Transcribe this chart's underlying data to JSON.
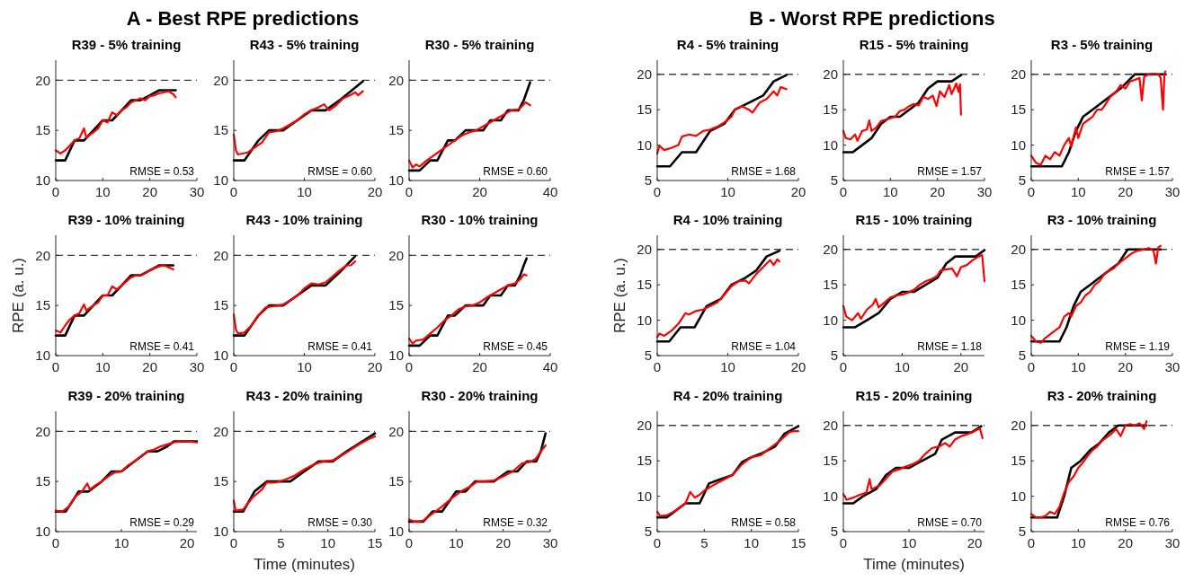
{
  "chart_data": [
    {
      "type": "line",
      "title": "R39 - 5% training",
      "annotations": [
        "A - Best RPE predictions",
        "RMSE = 0.53"
      ],
      "xlim": [
        0,
        30
      ],
      "xticks": [
        0,
        10,
        20,
        30
      ],
      "ylim": [
        10,
        22
      ],
      "yticks": [
        10,
        15,
        20
      ],
      "ref_lines": [
        {
          "axis": "y",
          "value": 20,
          "color": "#404040",
          "line_style": "dashed"
        }
      ],
      "series": [
        {
          "color": "#000000",
          "x": [
            0,
            2,
            4,
            6,
            8,
            10,
            12,
            14,
            16,
            18,
            20,
            22,
            25.5
          ],
          "values": [
            12,
            12,
            14,
            14,
            15,
            16,
            16,
            17,
            18,
            18,
            18.5,
            19,
            19
          ]
        },
        {
          "color": "#ff0000",
          "x": [
            0,
            1,
            2,
            3,
            4,
            5,
            6,
            6.5,
            8,
            9,
            10,
            11,
            12,
            13,
            14,
            15,
            16,
            17,
            18,
            19,
            20,
            21,
            22,
            23,
            24,
            25,
            25.5
          ],
          "values": [
            13,
            12.7,
            13,
            13.5,
            14,
            14.2,
            15.2,
            14.3,
            14.8,
            15.2,
            16,
            15.8,
            16.8,
            16.5,
            17,
            17.3,
            17.8,
            18,
            18.2,
            18,
            18.4,
            18.5,
            18.7,
            18.8,
            18.9,
            18.6,
            18.3
          ]
        }
      ]
    },
    {
      "type": "line",
      "title": "R43 - 5% training",
      "annotations": [
        "RMSE = 0.60"
      ],
      "xlim": [
        0,
        20
      ],
      "xticks": [
        0,
        10,
        20
      ],
      "ylim": [
        10,
        22
      ],
      "yticks": [
        10,
        15,
        20
      ],
      "ref_lines": [
        {
          "axis": "y",
          "value": 20,
          "color": "#404040",
          "line_style": "dashed"
        }
      ],
      "series": [
        {
          "color": "#000000",
          "x": [
            0,
            1.5,
            3.5,
            5,
            7,
            9,
            11,
            13,
            15,
            18.3
          ],
          "values": [
            12,
            12,
            14,
            15,
            15,
            16,
            17,
            17,
            18,
            19.9
          ]
        },
        {
          "color": "#ff0000",
          "x": [
            0,
            0.3,
            0.6,
            2,
            3,
            4,
            5,
            6,
            7,
            8,
            9,
            10,
            11,
            12,
            12.8,
            13.5,
            14.5,
            15.5,
            16.5,
            17.2,
            17.6,
            18.3
          ],
          "values": [
            14.6,
            13,
            12.6,
            12.8,
            13.3,
            13.8,
            14.8,
            14.9,
            15.2,
            15.6,
            16,
            16.6,
            17,
            17.3,
            17.6,
            17,
            17.5,
            18.2,
            18.5,
            18.8,
            18.5,
            18.9
          ]
        }
      ]
    },
    {
      "type": "line",
      "title": "R30 - 5% training",
      "annotations": [
        "RMSE = 0.60"
      ],
      "xlim": [
        0,
        40
      ],
      "xticks": [
        0,
        20,
        40
      ],
      "ylim": [
        10,
        22
      ],
      "yticks": [
        10,
        15,
        20
      ],
      "ref_lines": [
        {
          "axis": "y",
          "value": 20,
          "color": "#404040",
          "line_style": "dashed"
        }
      ],
      "series": [
        {
          "color": "#000000",
          "x": [
            0,
            3,
            6,
            8,
            11,
            13,
            16,
            19,
            21,
            23,
            26,
            28,
            31,
            32.5,
            33.5,
            34.3
          ],
          "values": [
            11,
            11,
            12,
            12,
            14,
            14,
            15,
            15,
            15,
            16,
            16,
            17,
            17,
            18,
            19,
            19.8
          ]
        },
        {
          "color": "#ff0000",
          "x": [
            0,
            1,
            2,
            3,
            5,
            7,
            9,
            11,
            13,
            15,
            17,
            19,
            21,
            23,
            25,
            27,
            29,
            31,
            32,
            33,
            34.3
          ],
          "values": [
            12,
            11.3,
            11.6,
            11.4,
            12,
            12.5,
            13,
            13.5,
            14,
            14.5,
            14.8,
            15,
            15.4,
            15.8,
            16.2,
            16.6,
            17,
            17.1,
            17.4,
            17.8,
            17.5
          ]
        }
      ]
    },
    {
      "type": "line",
      "title": "R39 - 10% training",
      "ylabel": "RPE (a. u.)",
      "annotations": [
        "RMSE = 0.41"
      ],
      "xlim": [
        0,
        30
      ],
      "xticks": [
        0,
        10,
        20,
        30
      ],
      "ylim": [
        10,
        22
      ],
      "yticks": [
        10,
        15,
        20
      ],
      "ref_lines": [
        {
          "axis": "y",
          "value": 20,
          "color": "#404040",
          "line_style": "dashed"
        }
      ],
      "series": [
        {
          "color": "#000000",
          "x": [
            0,
            2,
            4,
            6,
            8,
            10,
            12,
            14,
            16,
            18,
            20,
            22,
            25
          ],
          "values": [
            12,
            12,
            14,
            14,
            15,
            16,
            16,
            17,
            18,
            18,
            18.5,
            19,
            19
          ]
        },
        {
          "color": "#ff0000",
          "x": [
            0,
            1,
            2,
            3,
            4,
            5,
            6,
            6.5,
            8,
            9,
            10,
            11,
            12,
            13,
            14,
            15,
            16,
            17,
            18,
            19,
            20,
            21,
            22,
            23,
            24,
            25
          ],
          "values": [
            12.5,
            12.3,
            13,
            13.6,
            14,
            14.2,
            15.1,
            14.5,
            15,
            15.3,
            16,
            16,
            16.9,
            16.6,
            17,
            17.4,
            17.8,
            18,
            18,
            18.2,
            18.5,
            18.7,
            18.9,
            19,
            18.8,
            18.6
          ]
        }
      ]
    },
    {
      "type": "line",
      "title": "R43 - 10% training",
      "annotations": [
        "RMSE = 0.41"
      ],
      "xlim": [
        0,
        20
      ],
      "xticks": [
        0,
        10,
        20
      ],
      "ylim": [
        10,
        22
      ],
      "yticks": [
        10,
        15,
        20
      ],
      "ref_lines": [
        {
          "axis": "y",
          "value": 20,
          "color": "#404040",
          "line_style": "dashed"
        }
      ],
      "series": [
        {
          "color": "#000000",
          "x": [
            0,
            1.5,
            3.5,
            5,
            7,
            9,
            11,
            13,
            15,
            17.2
          ],
          "values": [
            12,
            12,
            14,
            15,
            15,
            16,
            17,
            17,
            18.3,
            19.9
          ]
        },
        {
          "color": "#ff0000",
          "x": [
            0,
            0.3,
            0.6,
            1.5,
            2.5,
            3.5,
            4.5,
            5.5,
            7,
            8,
            9,
            10,
            11,
            12,
            13,
            14,
            15,
            16,
            16.6,
            17.2
          ],
          "values": [
            14.1,
            12.6,
            12.2,
            12.3,
            13,
            14,
            14.8,
            14.9,
            15.1,
            15.5,
            16,
            16.7,
            17.2,
            17.1,
            17.3,
            17.9,
            18.5,
            19,
            19,
            19.4
          ]
        }
      ]
    },
    {
      "type": "line",
      "title": "R30 - 10% training",
      "annotations": [
        "RMSE = 0.45"
      ],
      "xlim": [
        0,
        40
      ],
      "xticks": [
        0,
        20,
        40
      ],
      "ylim": [
        10,
        22
      ],
      "yticks": [
        10,
        15,
        20
      ],
      "ref_lines": [
        {
          "axis": "y",
          "value": 20,
          "color": "#404040",
          "line_style": "dashed"
        }
      ],
      "series": [
        {
          "color": "#000000",
          "x": [
            0,
            3,
            6,
            8,
            11,
            13,
            16,
            19,
            21,
            23,
            26,
            28,
            30,
            31.5,
            32.5,
            33.3
          ],
          "values": [
            11,
            11,
            12,
            12,
            14,
            14,
            15,
            15,
            15,
            16,
            16,
            17,
            17,
            18,
            19,
            19.7
          ]
        },
        {
          "color": "#ff0000",
          "x": [
            0,
            1,
            2,
            4,
            6,
            8,
            10,
            12,
            14,
            16,
            18,
            20,
            22,
            24,
            26,
            28,
            30,
            31.5,
            32.5,
            33.3
          ],
          "values": [
            11.7,
            11.2,
            11.5,
            11.6,
            12.2,
            12.8,
            13.5,
            14,
            14.6,
            14.9,
            15,
            15.3,
            15.8,
            16.2,
            16.6,
            17,
            17.2,
            17.6,
            18.1,
            18
          ]
        }
      ]
    },
    {
      "type": "line",
      "title": "R39 - 20% training",
      "annotations": [
        "RMSE = 0.29"
      ],
      "xlim": [
        0,
        21.5
      ],
      "xticks": [
        0,
        10,
        20
      ],
      "ylim": [
        10,
        22
      ],
      "yticks": [
        10,
        15,
        20
      ],
      "ref_lines": [
        {
          "axis": "y",
          "value": 20,
          "color": "#404040",
          "line_style": "dashed"
        }
      ],
      "series": [
        {
          "color": "#000000",
          "x": [
            0,
            1.5,
            3,
            3.5,
            5,
            7,
            8.5,
            10,
            12,
            14,
            15.5,
            17,
            18,
            21.5
          ],
          "values": [
            12,
            12,
            13.5,
            14,
            14,
            15,
            16,
            16,
            17,
            18,
            18,
            18.5,
            19,
            19
          ]
        },
        {
          "color": "#ff0000",
          "x": [
            0,
            1,
            2,
            3,
            4,
            4.8,
            5.2,
            6,
            7,
            8,
            9,
            10,
            11,
            12,
            13,
            14,
            15,
            16,
            17,
            18,
            19,
            20,
            21.5
          ],
          "values": [
            12.1,
            12,
            12.5,
            13.5,
            14,
            14.8,
            14.2,
            14.6,
            15,
            15.5,
            15.9,
            16,
            16.6,
            17,
            17.5,
            18,
            18.2,
            18.5,
            18.7,
            18.9,
            19,
            19,
            18.9
          ]
        }
      ]
    },
    {
      "type": "line",
      "title": "R43 - 20% training",
      "xlabel": "Time (minutes)",
      "annotations": [
        "RMSE = 0.30"
      ],
      "xlim": [
        0,
        15
      ],
      "xticks": [
        0,
        5,
        10,
        15
      ],
      "ylim": [
        10,
        22
      ],
      "yticks": [
        10,
        15,
        20
      ],
      "ref_lines": [
        {
          "axis": "y",
          "value": 20,
          "color": "#404040",
          "line_style": "dashed"
        }
      ],
      "series": [
        {
          "color": "#000000",
          "x": [
            0,
            1,
            2.2,
            3.5,
            6,
            7.5,
            9,
            10.5,
            12,
            14,
            15
          ],
          "values": [
            12,
            12,
            14,
            15,
            15,
            16,
            17,
            17,
            18,
            19.2,
            19.8
          ]
        },
        {
          "color": "#ff0000",
          "x": [
            0,
            0.2,
            1,
            2,
            3,
            3.5,
            4.5,
            5.5,
            6.5,
            7.5,
            8.5,
            9.5,
            10.5,
            11.5,
            12.5,
            13.5,
            14.5,
            15
          ],
          "values": [
            13.1,
            12.1,
            12.2,
            13.4,
            14.2,
            14.9,
            14.9,
            15.2,
            15.6,
            16.2,
            16.7,
            17,
            17.1,
            17.6,
            18.2,
            18.8,
            19.3,
            19.5
          ]
        }
      ]
    },
    {
      "type": "line",
      "title": "R30 - 20% training",
      "annotations": [
        "RMSE = 0.32"
      ],
      "xlim": [
        0,
        30
      ],
      "xticks": [
        0,
        10,
        20,
        30
      ],
      "ylim": [
        10,
        22
      ],
      "yticks": [
        10,
        15,
        20
      ],
      "ref_lines": [
        {
          "axis": "y",
          "value": 20,
          "color": "#404040",
          "line_style": "dashed"
        }
      ],
      "series": [
        {
          "color": "#000000",
          "x": [
            0,
            3,
            5,
            7,
            10,
            12,
            14,
            18,
            19.5,
            21,
            23,
            25,
            27,
            28,
            29
          ],
          "values": [
            11,
            11,
            12,
            12,
            14,
            14,
            15,
            15,
            15.5,
            16,
            16,
            17,
            17,
            18,
            19.8
          ]
        },
        {
          "color": "#ff0000",
          "x": [
            0,
            1,
            2,
            3,
            5,
            7,
            9,
            11,
            13,
            14.5,
            16,
            18,
            20,
            22,
            24,
            26,
            27,
            28,
            29
          ],
          "values": [
            11.2,
            11,
            11,
            11.1,
            11.8,
            12.5,
            13.3,
            14,
            14.5,
            15,
            15,
            15.1,
            15.5,
            16,
            16.8,
            17,
            17.3,
            18,
            18.6
          ]
        }
      ]
    },
    {
      "type": "line",
      "title": "R4 - 5% training",
      "annotations": [
        "B - Worst RPE predictions",
        "RMSE = 1.68"
      ],
      "xlim": [
        0,
        20
      ],
      "xticks": [
        0,
        10,
        20
      ],
      "ylim": [
        5,
        22
      ],
      "yticks": [
        5,
        10,
        15,
        20
      ],
      "ref_lines": [
        {
          "axis": "y",
          "value": 20,
          "color": "#404040",
          "line_style": "dashed"
        }
      ],
      "series": [
        {
          "color": "#000000",
          "x": [
            0,
            1.8,
            3.5,
            5.5,
            7.5,
            9.5,
            11,
            13,
            15,
            16.5,
            18.3
          ],
          "values": [
            7,
            7,
            9,
            9,
            12,
            13,
            15,
            16,
            17,
            19,
            19.9
          ]
        },
        {
          "color": "#ff0000",
          "x": [
            0,
            0.3,
            1,
            2,
            3,
            3.5,
            4.5,
            5.5,
            6.5,
            7.5,
            8.5,
            9.5,
            10.5,
            11,
            12,
            13,
            13.5,
            14.5,
            15.5,
            16.5,
            17,
            17.5,
            18.3
          ],
          "values": [
            8.8,
            9.9,
            9.3,
            9.6,
            10,
            11.2,
            11.5,
            11.3,
            12,
            12.2,
            12.6,
            13.2,
            14,
            15,
            15.5,
            15,
            14.6,
            16,
            16.5,
            17.6,
            17,
            18.2,
            17.9
          ]
        }
      ]
    },
    {
      "type": "line",
      "title": "R15 - 5% training",
      "annotations": [
        "RMSE = 1.57"
      ],
      "xlim": [
        0,
        30
      ],
      "xticks": [
        0,
        10,
        20,
        30
      ],
      "ylim": [
        5,
        22
      ],
      "yticks": [
        5,
        10,
        15,
        20
      ],
      "ref_lines": [
        {
          "axis": "y",
          "value": 20,
          "color": "#404040",
          "line_style": "dashed"
        }
      ],
      "series": [
        {
          "color": "#000000",
          "x": [
            0,
            2,
            4,
            6,
            8,
            10,
            12,
            14,
            16,
            18,
            20,
            23,
            25
          ],
          "values": [
            9,
            9,
            10,
            11,
            13,
            14,
            14,
            15,
            16,
            18,
            19,
            19,
            19.9
          ]
        },
        {
          "color": "#ff0000",
          "x": [
            0,
            0.5,
            1.5,
            2.5,
            3,
            4,
            5,
            5.5,
            6,
            7,
            8,
            9,
            10,
            11,
            12,
            13,
            14,
            15,
            16,
            17,
            18,
            19,
            19.8,
            20.5,
            21.5,
            22.5,
            23,
            24,
            24.5,
            24.8,
            25
          ],
          "values": [
            12,
            11,
            10.8,
            11.5,
            10.6,
            12,
            12.2,
            13.5,
            12,
            12.5,
            13.4,
            13.6,
            13.8,
            14,
            14.8,
            15,
            15.5,
            15.8,
            15.6,
            16.8,
            16.5,
            17,
            15.5,
            17.6,
            16.8,
            18.5,
            17.2,
            18.7,
            17.5,
            18.6,
            14.3
          ]
        }
      ]
    },
    {
      "type": "line",
      "title": "R3 - 5% training",
      "annotations": [
        "RMSE = 1.57"
      ],
      "xlim": [
        0,
        30
      ],
      "xticks": [
        0,
        10,
        20,
        30
      ],
      "ylim": [
        5,
        22
      ],
      "yticks": [
        5,
        10,
        15,
        20
      ],
      "ref_lines": [
        {
          "axis": "y",
          "value": 20,
          "color": "#404040",
          "line_style": "dashed"
        }
      ],
      "series": [
        {
          "color": "#000000",
          "x": [
            0,
            6.5,
            8,
            9.5,
            11,
            13,
            15,
            17,
            19,
            20.5,
            22,
            28.5
          ],
          "values": [
            7,
            7,
            9,
            12,
            14,
            15,
            16,
            17,
            18,
            19,
            20,
            20
          ]
        },
        {
          "color": "#ff0000",
          "x": [
            0,
            1,
            2,
            3,
            4,
            5,
            6,
            7,
            8,
            8.5,
            9.5,
            10,
            11,
            12,
            13,
            14,
            15,
            16,
            17,
            18,
            19,
            20,
            21,
            22,
            23,
            23.5,
            24,
            25,
            26,
            27,
            27.5,
            28,
            28.3,
            28.5
          ],
          "values": [
            8.5,
            7.5,
            7.2,
            8.5,
            8,
            9,
            8.5,
            10,
            11,
            9.8,
            12.5,
            11,
            13,
            13.5,
            14,
            15,
            15,
            16,
            17,
            17.5,
            18.5,
            18,
            19,
            19.2,
            19.5,
            16.3,
            19.7,
            20,
            20.1,
            20,
            19.5,
            15,
            20,
            20.4
          ]
        }
      ]
    },
    {
      "type": "line",
      "title": "R4 - 10% training",
      "ylabel": "RPE (a. u.)",
      "annotations": [
        "RMSE = 1.04"
      ],
      "xlim": [
        0,
        20
      ],
      "xticks": [
        0,
        10,
        20
      ],
      "ylim": [
        5,
        22
      ],
      "yticks": [
        5,
        10,
        15,
        20
      ],
      "ref_lines": [
        {
          "axis": "y",
          "value": 20,
          "color": "#404040",
          "line_style": "dashed"
        }
      ],
      "series": [
        {
          "color": "#000000",
          "x": [
            0,
            1.7,
            3.3,
            5.3,
            7,
            9,
            10.5,
            12.5,
            14,
            15.5,
            17.3
          ],
          "values": [
            7,
            7,
            9,
            9,
            12,
            13,
            15,
            16,
            17,
            19,
            19.8
          ]
        },
        {
          "color": "#ff0000",
          "x": [
            0,
            0.3,
            1,
            2,
            3,
            4,
            4.5,
            5.5,
            6.5,
            7.5,
            8.5,
            9.5,
            10.5,
            11.5,
            12.5,
            13,
            14,
            15,
            16,
            16.5,
            17,
            17.3
          ],
          "values": [
            7.6,
            8.1,
            7.8,
            8.5,
            9.5,
            11,
            10.8,
            11.3,
            11.5,
            12,
            12.5,
            13.6,
            14.8,
            15.5,
            15.6,
            15.2,
            16.5,
            17.5,
            18.5,
            17.8,
            18.6,
            18.3
          ]
        }
      ]
    },
    {
      "type": "line",
      "title": "R15 - 10% training",
      "annotations": [
        "RMSE = 1.18"
      ],
      "xlim": [
        0,
        24
      ],
      "xticks": [
        0,
        10,
        20
      ],
      "ylim": [
        5,
        22
      ],
      "yticks": [
        5,
        10,
        15,
        20
      ],
      "ref_lines": [
        {
          "axis": "y",
          "value": 20,
          "color": "#404040",
          "line_style": "dashed"
        }
      ],
      "series": [
        {
          "color": "#000000",
          "x": [
            0,
            2,
            4,
            6,
            8,
            10,
            12,
            14,
            16,
            17.5,
            19,
            22.5,
            24
          ],
          "values": [
            9,
            9,
            10,
            11,
            13,
            14,
            14,
            15,
            16,
            18,
            19,
            19,
            19.9
          ]
        },
        {
          "color": "#ff0000",
          "x": [
            0,
            0.5,
            1.5,
            2.5,
            3,
            4,
            5,
            5.5,
            6,
            7,
            8,
            9,
            10,
            11,
            12,
            13,
            14,
            15,
            16,
            16.5,
            17.5,
            18.5,
            19.3,
            20,
            21,
            22,
            23,
            23.6,
            24
          ],
          "values": [
            12,
            10.5,
            10,
            11,
            10.2,
            11.5,
            12.2,
            13,
            11.8,
            12.5,
            13.2,
            13.5,
            13.6,
            13.9,
            14.3,
            15,
            15.5,
            15.8,
            16.3,
            17,
            17.2,
            17.3,
            16.2,
            17.5,
            17.8,
            18.5,
            19,
            19.2,
            15.5
          ]
        }
      ]
    },
    {
      "type": "line",
      "title": "R3 - 10% training",
      "annotations": [
        "RMSE = 1.19"
      ],
      "xlim": [
        0,
        30
      ],
      "xticks": [
        0,
        10,
        20,
        30
      ],
      "ylim": [
        5,
        22
      ],
      "yticks": [
        5,
        10,
        15,
        20
      ],
      "ref_lines": [
        {
          "axis": "y",
          "value": 20,
          "color": "#404040",
          "line_style": "dashed"
        }
      ],
      "series": [
        {
          "color": "#000000",
          "x": [
            0,
            6,
            7.5,
            9,
            10.5,
            12.5,
            14.5,
            16.5,
            18.5,
            19.5,
            20.5,
            27.5
          ],
          "values": [
            7,
            7,
            9,
            12,
            14,
            15,
            16,
            17,
            18,
            19,
            20,
            20
          ]
        },
        {
          "color": "#ff0000",
          "x": [
            0,
            1,
            2,
            3,
            4,
            5,
            6,
            7,
            8,
            8.5,
            9.5,
            10.5,
            11.5,
            12.5,
            13.5,
            14.5,
            15.5,
            16.5,
            17.5,
            18.5,
            19.5,
            20.5,
            21.5,
            22.5,
            24,
            25,
            26,
            26.5,
            27,
            27.5
          ],
          "values": [
            7.8,
            7,
            6.8,
            7.5,
            8,
            8.5,
            9,
            10.5,
            11,
            10.5,
            12,
            12.5,
            13.5,
            14,
            15,
            15.5,
            16.5,
            17,
            17.3,
            18,
            18.5,
            19,
            19.5,
            19.8,
            20,
            20.2,
            19.8,
            18,
            20.3,
            20.5
          ]
        }
      ]
    },
    {
      "type": "line",
      "title": "R4 - 20% training",
      "annotations": [
        "RMSE = 0.58"
      ],
      "xlim": [
        0,
        15
      ],
      "xticks": [
        0,
        5,
        10,
        15
      ],
      "ylim": [
        5,
        22
      ],
      "yticks": [
        5,
        10,
        15,
        20
      ],
      "ref_lines": [
        {
          "axis": "y",
          "value": 20,
          "color": "#404040",
          "line_style": "dashed"
        }
      ],
      "series": [
        {
          "color": "#000000",
          "x": [
            0,
            1,
            2,
            3,
            4.5,
            5.5,
            6.5,
            8,
            9,
            10,
            11,
            12.5,
            13.5,
            15
          ],
          "values": [
            7,
            7,
            8,
            9,
            9,
            11.8,
            12.3,
            13,
            14.8,
            15.5,
            16,
            17,
            18.8,
            19.9
          ]
        },
        {
          "color": "#ff0000",
          "x": [
            0,
            0.3,
            1,
            2,
            3,
            3.5,
            4,
            4.5,
            5,
            6,
            7,
            8,
            9,
            10,
            11,
            12,
            13,
            14,
            14.5,
            15
          ],
          "values": [
            7.8,
            7.2,
            7.3,
            8,
            9,
            10.6,
            9.8,
            10.2,
            10.8,
            11.6,
            12.3,
            13,
            14.5,
            15.5,
            15.8,
            16.8,
            17.8,
            19,
            19.2,
            19.2
          ]
        }
      ]
    },
    {
      "type": "line",
      "title": "R15 - 20% training",
      "xlabel": "Time (minutes)",
      "annotations": [
        "RMSE = 0.70"
      ],
      "xlim": [
        0,
        21.5
      ],
      "xticks": [
        0,
        10,
        20
      ],
      "ylim": [
        5,
        22
      ],
      "yticks": [
        5,
        10,
        15,
        20
      ],
      "ref_lines": [
        {
          "axis": "y",
          "value": 20,
          "color": "#404040",
          "line_style": "dashed"
        }
      ],
      "series": [
        {
          "color": "#000000",
          "x": [
            0,
            1.5,
            3,
            5,
            6.5,
            8,
            10,
            12,
            14,
            15,
            17,
            19.5,
            21
          ],
          "values": [
            9,
            9,
            10,
            11,
            13,
            14,
            14,
            15,
            16,
            18,
            19,
            19,
            19.9
          ]
        },
        {
          "color": "#ff0000",
          "x": [
            0,
            0.5,
            1.5,
            2.5,
            3.5,
            4,
            4.3,
            5.5,
            6.5,
            7.5,
            8.5,
            9.5,
            10.5,
            11.5,
            12.5,
            13.5,
            14.5,
            15.5,
            16.2,
            17,
            18,
            19,
            20,
            20.8,
            21.2
          ],
          "values": [
            10.3,
            9.5,
            9.8,
            10.2,
            10.5,
            12.4,
            11,
            11.5,
            12.5,
            13.5,
            13.8,
            14.2,
            14.5,
            15,
            16,
            16.8,
            17,
            17.5,
            17,
            18,
            18.5,
            18.8,
            19.2,
            19.6,
            18.2
          ]
        }
      ]
    },
    {
      "type": "line",
      "title": "R3 - 20% training",
      "annotations": [
        "RMSE = 0.76"
      ],
      "xlim": [
        0,
        30
      ],
      "xticks": [
        0,
        10,
        20,
        30
      ],
      "ylim": [
        5,
        22
      ],
      "yticks": [
        5,
        10,
        15,
        20
      ],
      "ref_lines": [
        {
          "axis": "y",
          "value": 20,
          "color": "#404040",
          "line_style": "dashed"
        }
      ],
      "series": [
        {
          "color": "#000000",
          "x": [
            0,
            5.5,
            7,
            8.5,
            10.5,
            12.5,
            14.5,
            16.5,
            18.5,
            24.5
          ],
          "values": [
            7,
            7,
            10,
            14,
            15,
            16.5,
            17.5,
            19,
            20,
            20
          ]
        },
        {
          "color": "#ff0000",
          "x": [
            0,
            1,
            2,
            3,
            4,
            5,
            6,
            7,
            8,
            9,
            10,
            11,
            12,
            13,
            14,
            15,
            16,
            17,
            18,
            19,
            20,
            21,
            22,
            23,
            24,
            24.5
          ],
          "values": [
            7.5,
            7,
            7,
            7.2,
            7.8,
            7.5,
            8.5,
            10.5,
            12,
            12.8,
            14,
            14.8,
            15.7,
            16.5,
            17,
            17.8,
            18.3,
            18.8,
            19.5,
            18.5,
            20,
            20.2,
            20,
            20.3,
            19.5,
            20.6
          ]
        }
      ]
    }
  ]
}
